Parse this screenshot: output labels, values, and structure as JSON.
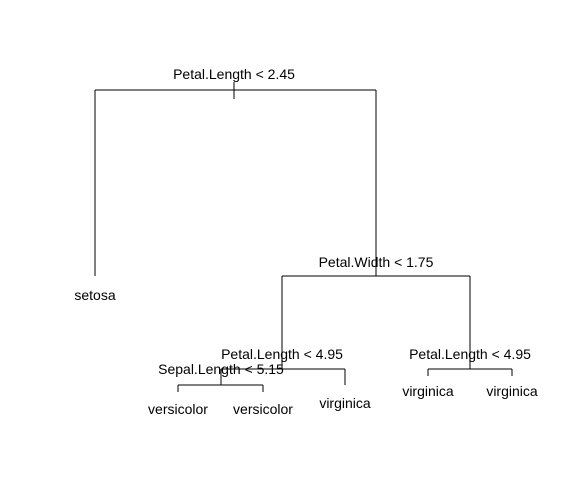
{
  "title": "",
  "tree": {
    "root_split": "Petal.Length < 2.45",
    "split_2": "Petal.Width < 1.75",
    "split_3": "Petal.Length < 4.95",
    "split_4": "Sepal.Length < 5.15",
    "split_5": "Petal.Length < 4.95",
    "leaves": {
      "setosa": "setosa",
      "versicolor_1": "versicolor",
      "versicolor_2": "versicolor",
      "virginica_1": "virginica",
      "virginica_2": "virginica",
      "virginica_3": "virginica"
    }
  },
  "colors": {
    "line": "#000000",
    "text": "#000000",
    "background": "#ffffff"
  }
}
